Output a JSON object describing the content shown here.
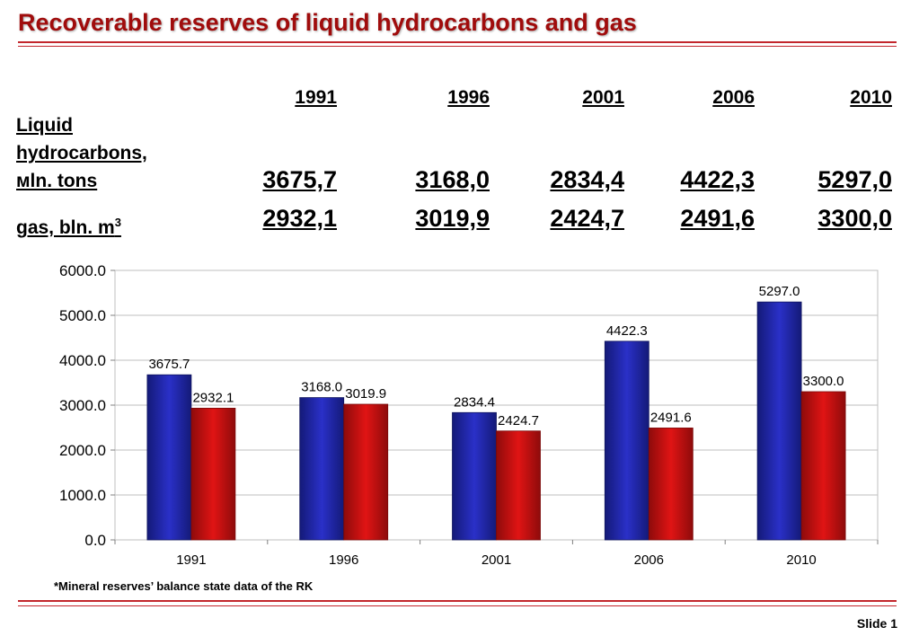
{
  "title": "Recoverable reserves of liquid hydrocarbons and gas",
  "table": {
    "years": [
      "1991",
      "1996",
      "2001",
      "2006",
      "2010"
    ],
    "rows": [
      {
        "label_lines": [
          "Liquid",
          "hydrocarbons,",
          "мln. tons"
        ],
        "values": [
          "3675,7",
          "3168,0",
          "2834,4",
          "4422,3",
          "5297,0"
        ]
      },
      {
        "label": "gas, bln. m",
        "label_sup": "3",
        "values": [
          "2932,1",
          "3019,9",
          "2424,7",
          "2491,6",
          "3300,0"
        ]
      }
    ]
  },
  "chart_data": {
    "type": "bar",
    "categories": [
      "1991",
      "1996",
      "2001",
      "2006",
      "2010"
    ],
    "series": [
      {
        "values": [
          3675.7,
          3168.0,
          2834.4,
          4422.3,
          5297.0
        ],
        "data_labels": [
          "3675.7",
          "3168.0",
          "2834.4",
          "4422.3",
          "5297.0"
        ],
        "color": "#1f24a6"
      },
      {
        "values": [
          2932.1,
          3019.9,
          2424.7,
          2491.6,
          3300.0
        ],
        "data_labels": [
          "2932.1",
          "3019.9",
          "2424.7",
          "2491.6",
          "3300.0"
        ],
        "color": "#c40f0f"
      }
    ],
    "ylim": [
      0,
      6000
    ],
    "yticks": [
      "0.0",
      "1000.0",
      "2000.0",
      "3000.0",
      "4000.0",
      "5000.0",
      "6000.0"
    ],
    "grid": true
  },
  "footnote": "*Mineral reserves’ balance state data of the RK",
  "slide_label": "Slide 1"
}
